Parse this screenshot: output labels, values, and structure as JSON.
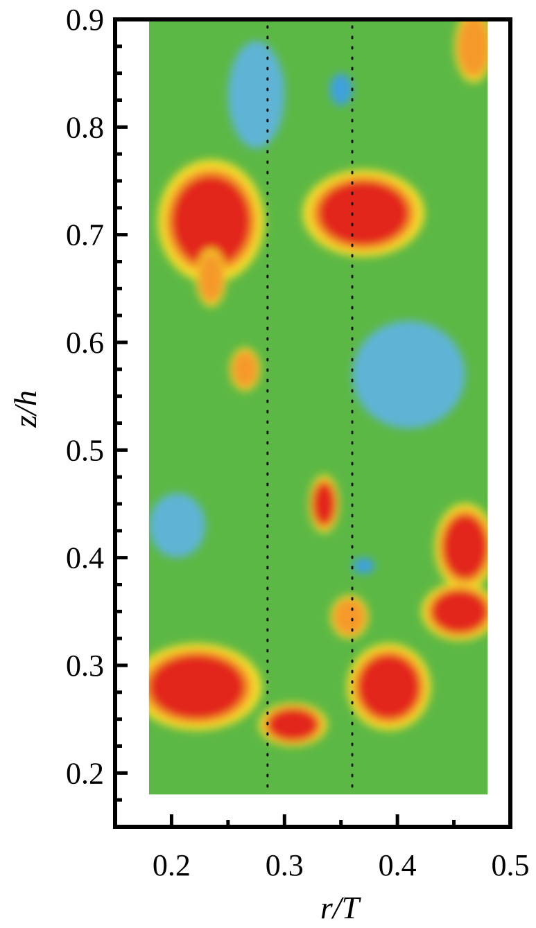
{
  "chart_data": {
    "type": "heatmap",
    "xlabel": "r/T",
    "ylabel": "z/h",
    "xlim": [
      0.15,
      0.5
    ],
    "ylim": [
      0.15,
      0.9
    ],
    "x_ticks": [
      "0.2",
      "0.3",
      "0.4",
      "0.5"
    ],
    "x_tick_values": [
      0.2,
      0.3,
      0.4,
      0.5
    ],
    "y_ticks": [
      "0.2",
      "0.3",
      "0.4",
      "0.5",
      "0.6",
      "0.7",
      "0.8",
      "0.9"
    ],
    "y_tick_values": [
      0.2,
      0.3,
      0.4,
      0.5,
      0.6,
      0.7,
      0.8,
      0.9
    ],
    "data_extent": {
      "x": [
        0.18,
        0.48
      ],
      "y": [
        0.18,
        0.9
      ]
    },
    "reference_lines_x": [
      0.285,
      0.36
    ],
    "colorscale": [
      "#3fa1dd",
      "#5fb4d6",
      "#8cc87a",
      "#5cb845",
      "#d6e04a",
      "#f4de2a",
      "#f59a2c",
      "#e2271e"
    ],
    "regions": [
      {
        "level": 7,
        "x": [
          0.2,
          0.27
        ],
        "y": [
          0.67,
          0.755
        ]
      },
      {
        "level": 7,
        "x": [
          0.33,
          0.41
        ],
        "y": [
          0.69,
          0.75
        ]
      },
      {
        "level": 6,
        "x": [
          0.455,
          0.48
        ],
        "y": [
          0.85,
          0.9
        ]
      },
      {
        "level": 6,
        "x": [
          0.225,
          0.245
        ],
        "y": [
          0.64,
          0.68
        ]
      },
      {
        "level": 6,
        "x": [
          0.255,
          0.275
        ],
        "y": [
          0.56,
          0.59
        ]
      },
      {
        "level": 7,
        "x": [
          0.325,
          0.345
        ],
        "y": [
          0.43,
          0.47
        ]
      },
      {
        "level": 7,
        "x": [
          0.44,
          0.48
        ],
        "y": [
          0.38,
          0.44
        ]
      },
      {
        "level": 7,
        "x": [
          0.18,
          0.265
        ],
        "y": [
          0.25,
          0.31
        ]
      },
      {
        "level": 7,
        "x": [
          0.285,
          0.33
        ],
        "y": [
          0.23,
          0.26
        ]
      },
      {
        "level": 7,
        "x": [
          0.365,
          0.42
        ],
        "y": [
          0.25,
          0.31
        ]
      },
      {
        "level": 7,
        "x": [
          0.43,
          0.48
        ],
        "y": [
          0.33,
          0.37
        ]
      },
      {
        "level": 6,
        "x": [
          0.345,
          0.37
        ],
        "y": [
          0.33,
          0.36
        ]
      },
      {
        "level": 0,
        "x": [
          0.27,
          0.3
        ],
        "y": [
          0.82,
          0.86
        ]
      },
      {
        "level": 0,
        "x": [
          0.34,
          0.36
        ],
        "y": [
          0.82,
          0.85
        ]
      },
      {
        "level": 0,
        "x": [
          0.385,
          0.41
        ],
        "y": [
          0.58,
          0.6
        ]
      },
      {
        "level": 0,
        "x": [
          0.43,
          0.45
        ],
        "y": [
          0.54,
          0.56
        ]
      },
      {
        "level": 0,
        "x": [
          0.36,
          0.38
        ],
        "y": [
          0.385,
          0.4
        ]
      },
      {
        "level": 1,
        "x": [
          0.25,
          0.3
        ],
        "y": [
          0.78,
          0.88
        ]
      },
      {
        "level": 1,
        "x": [
          0.36,
          0.46
        ],
        "y": [
          0.52,
          0.62
        ]
      },
      {
        "level": 1,
        "x": [
          0.18,
          0.23
        ],
        "y": [
          0.4,
          0.46
        ]
      }
    ]
  }
}
